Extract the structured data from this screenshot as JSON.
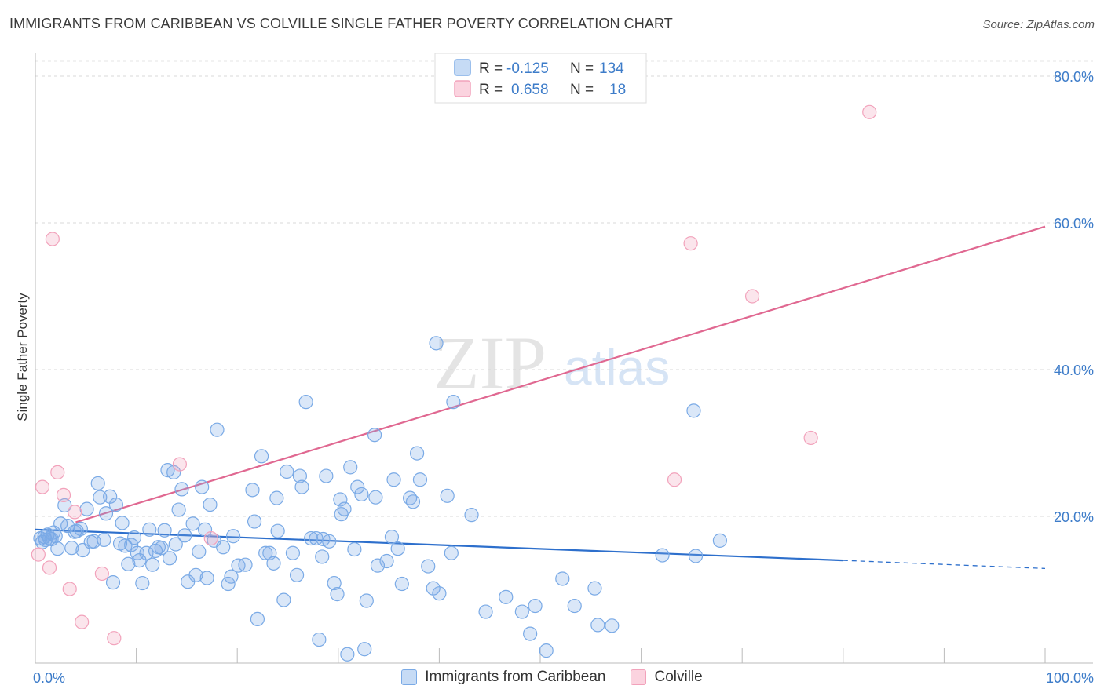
{
  "title": "IMMIGRANTS FROM CARIBBEAN VS COLVILLE SINGLE FATHER POVERTY CORRELATION CHART",
  "source": "Source: ZipAtlas.com",
  "watermark": {
    "zip": "ZIP",
    "atlas": "atlas"
  },
  "chart_data": {
    "type": "scatter",
    "ylabel": "Single Father Poverty",
    "xlabel": "",
    "xlim": [
      0,
      100
    ],
    "ylim": [
      0,
      80
    ],
    "x_tick_labels": [
      "0.0%",
      "100.0%"
    ],
    "y_ticks": [
      20,
      40,
      60,
      80
    ],
    "y_tick_labels": [
      "20.0%",
      "40.0%",
      "60.0%",
      "80.0%"
    ],
    "grid": "horizontal dashed",
    "legend_position": "top-center",
    "series": [
      {
        "name": "Immigrants from Caribbean",
        "color": "#7aaae6",
        "line_color": "#2d6fcc",
        "R": "-0.125",
        "N": "134",
        "trend": {
          "x0": 0,
          "y0": 18.2,
          "x1": 80,
          "y1": 14.0,
          "dashed_to_x": 100,
          "dashed_to_y": 12.9
        },
        "points": [
          [
            0.5,
            17.0
          ],
          [
            0.7,
            16.5
          ],
          [
            0.9,
            17.2
          ],
          [
            1.0,
            16.8
          ],
          [
            1.2,
            17.5
          ],
          [
            1.4,
            17.0
          ],
          [
            1.6,
            16.9
          ],
          [
            1.8,
            17.8
          ],
          [
            2.0,
            17.3
          ],
          [
            2.2,
            15.6
          ],
          [
            2.5,
            19.0
          ],
          [
            2.9,
            21.5
          ],
          [
            3.2,
            18.7
          ],
          [
            3.6,
            15.7
          ],
          [
            3.9,
            17.9
          ],
          [
            4.1,
            18.0
          ],
          [
            4.5,
            18.3
          ],
          [
            4.7,
            15.4
          ],
          [
            5.1,
            21.0
          ],
          [
            5.5,
            16.5
          ],
          [
            5.8,
            16.6
          ],
          [
            6.2,
            24.5
          ],
          [
            6.4,
            22.6
          ],
          [
            6.8,
            16.8
          ],
          [
            7.0,
            20.4
          ],
          [
            7.4,
            22.7
          ],
          [
            7.7,
            11.0
          ],
          [
            8.0,
            21.6
          ],
          [
            8.4,
            16.3
          ],
          [
            8.6,
            19.1
          ],
          [
            8.9,
            16.0
          ],
          [
            9.2,
            13.5
          ],
          [
            9.5,
            16.1
          ],
          [
            9.8,
            17.1
          ],
          [
            10.1,
            15.0
          ],
          [
            10.3,
            14.0
          ],
          [
            10.6,
            10.9
          ],
          [
            11.0,
            15.0
          ],
          [
            11.3,
            18.2
          ],
          [
            11.6,
            13.4
          ],
          [
            11.9,
            15.3
          ],
          [
            12.2,
            15.8
          ],
          [
            12.5,
            15.7
          ],
          [
            12.8,
            18.1
          ],
          [
            13.1,
            26.3
          ],
          [
            13.3,
            14.3
          ],
          [
            13.7,
            26.0
          ],
          [
            13.9,
            16.2
          ],
          [
            14.2,
            20.9
          ],
          [
            14.5,
            23.7
          ],
          [
            14.8,
            17.4
          ],
          [
            15.1,
            11.1
          ],
          [
            15.6,
            19.0
          ],
          [
            15.9,
            12.0
          ],
          [
            16.2,
            15.2
          ],
          [
            16.5,
            24.0
          ],
          [
            16.8,
            18.2
          ],
          [
            17.0,
            11.6
          ],
          [
            17.3,
            21.6
          ],
          [
            17.7,
            16.7
          ],
          [
            18.0,
            31.8
          ],
          [
            18.6,
            15.8
          ],
          [
            19.1,
            10.8
          ],
          [
            19.4,
            11.8
          ],
          [
            19.6,
            17.3
          ],
          [
            20.1,
            13.3
          ],
          [
            20.8,
            13.4
          ],
          [
            21.5,
            23.6
          ],
          [
            21.7,
            19.3
          ],
          [
            22.0,
            6.0
          ],
          [
            22.4,
            28.2
          ],
          [
            22.8,
            15.0
          ],
          [
            23.2,
            15.0
          ],
          [
            23.6,
            13.6
          ],
          [
            23.9,
            22.5
          ],
          [
            24.0,
            18.0
          ],
          [
            24.6,
            8.6
          ],
          [
            24.9,
            26.1
          ],
          [
            25.5,
            15.0
          ],
          [
            25.9,
            12.0
          ],
          [
            26.2,
            25.5
          ],
          [
            26.4,
            24.0
          ],
          [
            26.8,
            35.6
          ],
          [
            27.3,
            17.0
          ],
          [
            27.8,
            17.0
          ],
          [
            28.1,
            3.2
          ],
          [
            28.4,
            14.5
          ],
          [
            28.5,
            16.9
          ],
          [
            28.8,
            25.5
          ],
          [
            29.1,
            16.6
          ],
          [
            29.6,
            10.9
          ],
          [
            29.9,
            9.4
          ],
          [
            30.2,
            22.3
          ],
          [
            30.3,
            20.3
          ],
          [
            30.6,
            21.0
          ],
          [
            30.9,
            1.2
          ],
          [
            31.2,
            26.7
          ],
          [
            31.6,
            15.5
          ],
          [
            31.9,
            24.0
          ],
          [
            32.3,
            23.0
          ],
          [
            32.6,
            1.9
          ],
          [
            32.8,
            8.5
          ],
          [
            33.6,
            31.1
          ],
          [
            33.7,
            22.6
          ],
          [
            33.9,
            13.3
          ],
          [
            34.8,
            13.9
          ],
          [
            35.3,
            17.2
          ],
          [
            35.5,
            25.0
          ],
          [
            35.9,
            15.6
          ],
          [
            36.3,
            10.8
          ],
          [
            37.1,
            22.5
          ],
          [
            37.4,
            22.0
          ],
          [
            37.8,
            28.6
          ],
          [
            38.1,
            25.0
          ],
          [
            38.9,
            13.2
          ],
          [
            39.4,
            10.2
          ],
          [
            39.7,
            43.6
          ],
          [
            40.0,
            9.5
          ],
          [
            40.8,
            22.8
          ],
          [
            41.2,
            15.0
          ],
          [
            41.4,
            35.6
          ],
          [
            43.2,
            20.2
          ],
          [
            44.6,
            7.0
          ],
          [
            46.6,
            9.0
          ],
          [
            48.2,
            7.0
          ],
          [
            49.0,
            4.0
          ],
          [
            49.5,
            7.8
          ],
          [
            50.6,
            1.7
          ],
          [
            52.2,
            11.5
          ],
          [
            53.4,
            7.8
          ],
          [
            55.4,
            10.2
          ],
          [
            55.7,
            5.2
          ],
          [
            57.1,
            5.1
          ],
          [
            62.1,
            14.7
          ],
          [
            65.2,
            34.4
          ],
          [
            65.4,
            14.6
          ],
          [
            67.8,
            16.7
          ]
        ]
      },
      {
        "name": "Colville",
        "color": "#f2a2bb",
        "line_color": "#e06891",
        "R": "0.658",
        "N": "18",
        "trend": {
          "x0": 4,
          "y0": 19.2,
          "x1": 100,
          "y1": 59.5
        },
        "points": [
          [
            0.3,
            14.8
          ],
          [
            0.7,
            24.0
          ],
          [
            1.4,
            13.0
          ],
          [
            1.7,
            57.8
          ],
          [
            2.2,
            26.0
          ],
          [
            2.8,
            22.9
          ],
          [
            3.4,
            10.1
          ],
          [
            3.9,
            20.6
          ],
          [
            4.6,
            5.6
          ],
          [
            6.6,
            12.2
          ],
          [
            7.8,
            3.4
          ],
          [
            14.3,
            27.1
          ],
          [
            17.4,
            17.0
          ],
          [
            63.3,
            25.0
          ],
          [
            64.9,
            57.2
          ],
          [
            71.0,
            50.0
          ],
          [
            76.8,
            30.7
          ],
          [
            82.6,
            75.1
          ]
        ]
      }
    ]
  }
}
